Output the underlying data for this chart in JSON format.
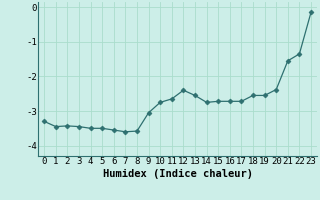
{
  "x": [
    0,
    1,
    2,
    3,
    4,
    5,
    6,
    7,
    8,
    9,
    10,
    11,
    12,
    13,
    14,
    15,
    16,
    17,
    18,
    19,
    20,
    21,
    22,
    23
  ],
  "y": [
    -3.3,
    -3.45,
    -3.43,
    -3.45,
    -3.5,
    -3.5,
    -3.55,
    -3.6,
    -3.58,
    -3.05,
    -2.75,
    -2.65,
    -2.4,
    -2.55,
    -2.75,
    -2.72,
    -2.72,
    -2.72,
    -2.55,
    -2.55,
    -2.38,
    -1.55,
    -1.35,
    -0.15
  ],
  "line_color": "#2e7070",
  "marker": "D",
  "marker_size": 2.5,
  "bg_color": "#cceee8",
  "grid_color": "#aaddcc",
  "spine_color": "#2e7070",
  "xlabel": "Humidex (Indice chaleur)",
  "ylim": [
    -4.3,
    0.15
  ],
  "xlim": [
    -0.5,
    23.5
  ],
  "yticks": [
    0,
    -1,
    -2,
    -3,
    -4
  ],
  "ytick_labels": [
    "0",
    "-1",
    "-2",
    "-3",
    "-4"
  ],
  "xticks": [
    0,
    1,
    2,
    3,
    4,
    5,
    6,
    7,
    8,
    9,
    10,
    11,
    12,
    13,
    14,
    15,
    16,
    17,
    18,
    19,
    20,
    21,
    22,
    23
  ],
  "tick_fontsize": 6.5,
  "label_fontsize": 7.5
}
